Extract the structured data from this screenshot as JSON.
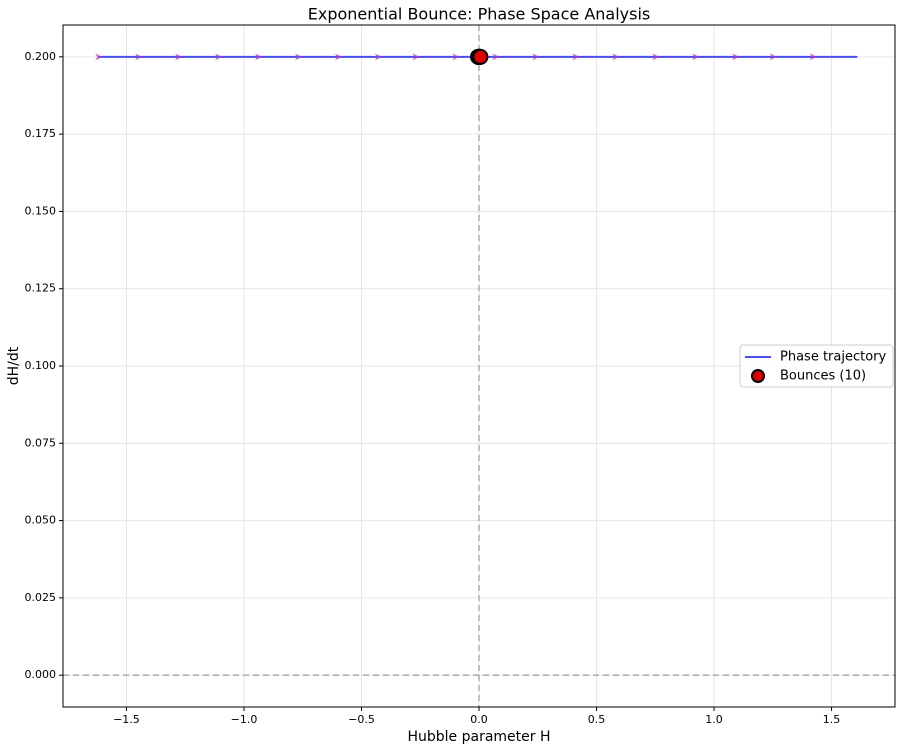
{
  "chart_data": {
    "type": "line",
    "title": "Exponential Bounce: Phase Space Analysis",
    "xlabel": "Hubble parameter H",
    "ylabel": "dH/dt",
    "xlim": [
      -1.77,
      1.77
    ],
    "ylim": [
      -0.0103,
      0.2103
    ],
    "xticks": [
      {
        "value": -1.5,
        "label": "−1.5"
      },
      {
        "value": -1.0,
        "label": "−1.0"
      },
      {
        "value": -0.5,
        "label": "−0.5"
      },
      {
        "value": 0,
        "label": "0.0"
      },
      0.5,
      {
        "value": 1.0,
        "label": "1.0"
      },
      1.5
    ],
    "yticks": [
      {
        "value": 0,
        "label": "0.000"
      },
      0.025,
      {
        "value": 0.05,
        "label": "0.050"
      },
      0.075,
      {
        "value": 0.1,
        "label": "0.100"
      },
      0.125,
      {
        "value": 0.15,
        "label": "0.150"
      },
      0.175,
      {
        "value": 0.2,
        "label": "0.200"
      }
    ],
    "grid": true,
    "hlines": [
      0
    ],
    "vlines": [
      0
    ],
    "legend": "center right",
    "series": [
      {
        "name": "Phase trajectory",
        "color": "#4b4bf0",
        "x": [
          -1.62,
          1.61
        ],
        "values": [
          0.2,
          0.2
        ]
      },
      {
        "name": "Bounces (10)",
        "color": "#e00000",
        "marker": "circle",
        "x": [
          -0.004,
          -0.003,
          -0.002,
          -0.001,
          0,
          0.001,
          0.002,
          0.003,
          0.004,
          0.006
        ],
        "values": [
          0.2,
          0.2,
          0.2,
          0.2,
          0.2,
          0.2,
          0.2,
          0.2,
          0.2,
          0.2
        ]
      }
    ],
    "arrows": {
      "color": "#b03cc0",
      "x": [
        -1.62,
        -1.45,
        -1.28,
        -1.11,
        -0.94,
        -0.77,
        -0.6,
        -0.43,
        -0.27,
        -0.1,
        0.07,
        0.24,
        0.41,
        0.58,
        0.75,
        0.92,
        1.09,
        1.25,
        1.42
      ],
      "values": [
        0.2,
        0.2,
        0.2,
        0.2,
        0.2,
        0.2,
        0.2,
        0.2,
        0.2,
        0.2,
        0.2,
        0.2,
        0.2,
        0.2,
        0.2,
        0.2,
        0.2,
        0.2,
        0.2
      ]
    }
  }
}
